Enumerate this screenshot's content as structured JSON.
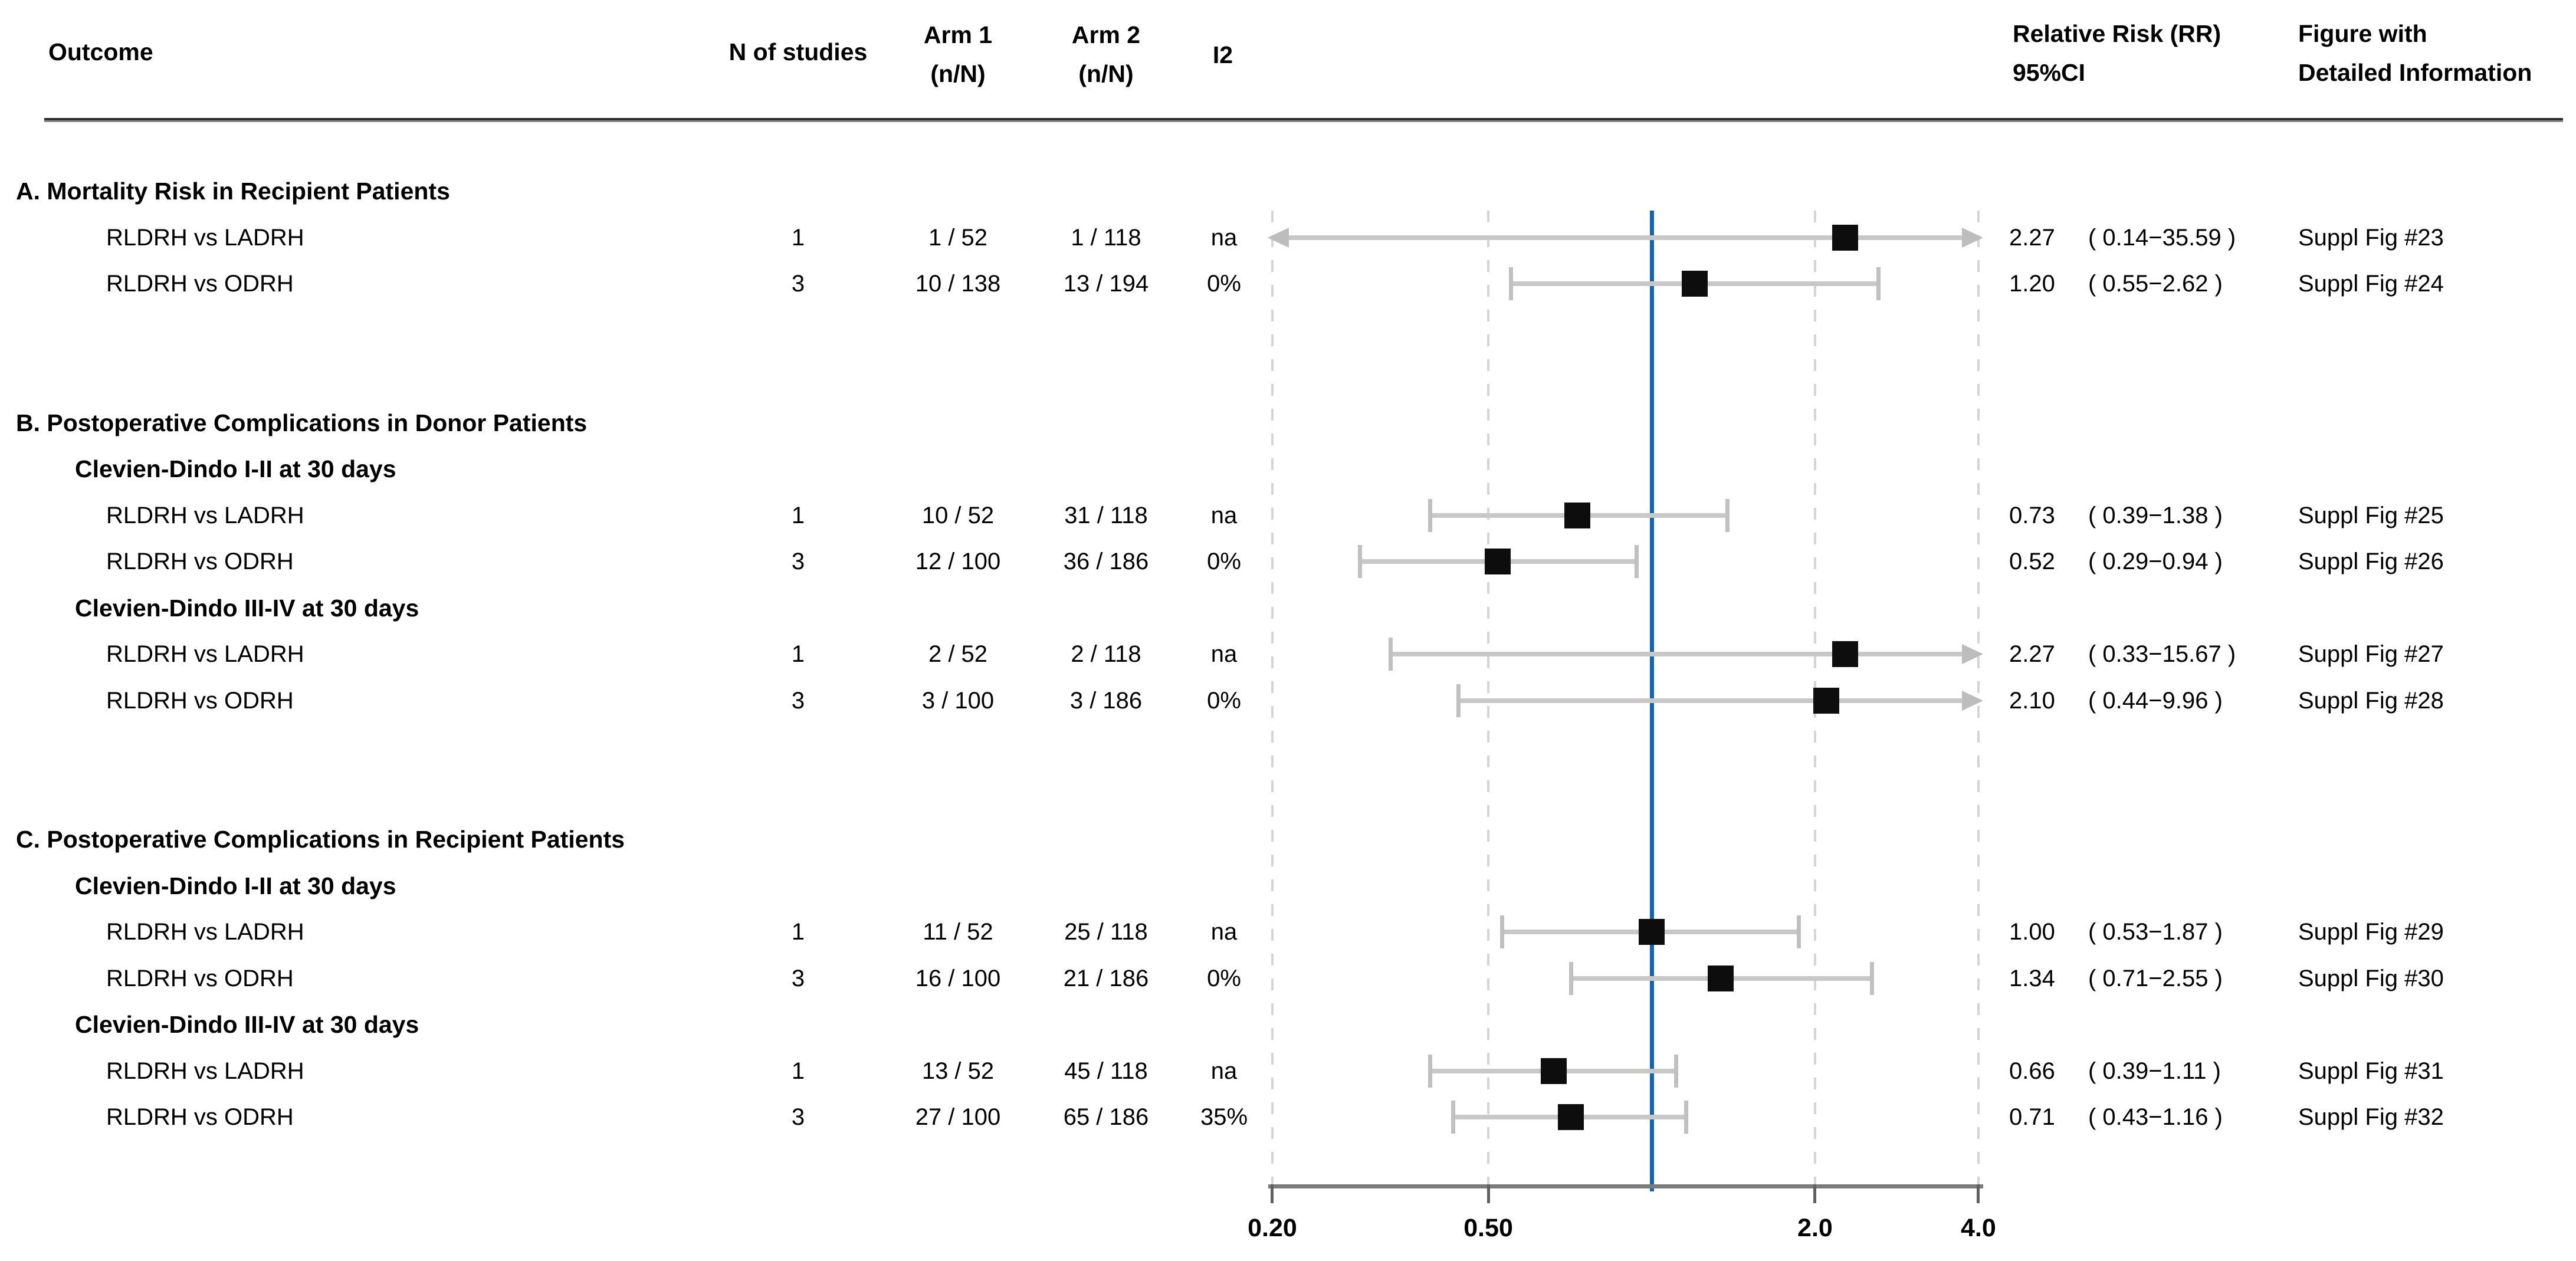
{
  "header": {
    "outcome": "Outcome",
    "n_studies": "N of studies",
    "arm1_line1": "Arm 1",
    "arm1_line2": "(n/N)",
    "arm2_line1": "Arm 2",
    "arm2_line2": "(n/N)",
    "i2": "I2",
    "rr_line1": "Relative Risk (RR)",
    "rr_line2": "95%CI",
    "fig_line1": "Figure with",
    "fig_line2": "Detailed Information"
  },
  "colors": {
    "ref_line": "#1565a8",
    "ci": "#c8c8c8",
    "marker": "#0d0d0d",
    "grid": "#d4d4d4",
    "axis": "#7b7b7b"
  },
  "chart_data": {
    "type": "forest",
    "scale": "log",
    "axis": {
      "range": [
        0.2,
        4.0
      ],
      "reference_value": 1.0,
      "ticks": [
        {
          "value": 0.2,
          "label": "0.20"
        },
        {
          "value": 0.5,
          "label": "0.50"
        },
        {
          "value": 2.0,
          "label": "2.0"
        },
        {
          "value": 4.0,
          "label": "4.0"
        }
      ]
    },
    "rows": [
      {
        "kind": "section",
        "slot": 0,
        "label": "A. Mortality Risk in Recipient Patients"
      },
      {
        "kind": "study",
        "slot": 1,
        "label": "RLDRH vs LADRH",
        "n_studies": "1",
        "arm1": "1 / 52",
        "arm2": "1 / 118",
        "i2": "na",
        "rr": 2.27,
        "ci_low": 0.14,
        "ci_high": 35.59,
        "rr_text": "2.27",
        "ci_text": "( 0.14−35.59 )",
        "figure": "Suppl Fig #23"
      },
      {
        "kind": "study",
        "slot": 2,
        "label": "RLDRH vs ODRH",
        "n_studies": "3",
        "arm1": "10 / 138",
        "arm2": "13 / 194",
        "i2": "0%",
        "rr": 1.2,
        "ci_low": 0.55,
        "ci_high": 2.62,
        "rr_text": "1.20",
        "ci_text": "( 0.55−2.62 )",
        "figure": "Suppl Fig #24"
      },
      {
        "kind": "section",
        "slot": 5,
        "label": "B. Postoperative Complications in Donor Patients"
      },
      {
        "kind": "subsection",
        "slot": 6,
        "label": "Clevien-Dindo I-II at 30 days"
      },
      {
        "kind": "study",
        "slot": 7,
        "label": "RLDRH vs LADRH",
        "n_studies": "1",
        "arm1": "10 / 52",
        "arm2": "31 / 118",
        "i2": "na",
        "rr": 0.73,
        "ci_low": 0.39,
        "ci_high": 1.38,
        "rr_text": "0.73",
        "ci_text": "( 0.39−1.38 )",
        "figure": "Suppl Fig #25"
      },
      {
        "kind": "study",
        "slot": 8,
        "label": "RLDRH vs ODRH",
        "n_studies": "3",
        "arm1": "12 / 100",
        "arm2": "36 / 186",
        "i2": "0%",
        "rr": 0.52,
        "ci_low": 0.29,
        "ci_high": 0.94,
        "rr_text": "0.52",
        "ci_text": "( 0.29−0.94 )",
        "figure": "Suppl Fig #26"
      },
      {
        "kind": "subsection",
        "slot": 9,
        "label": "Clevien-Dindo III-IV at 30 days"
      },
      {
        "kind": "study",
        "slot": 10,
        "label": "RLDRH vs LADRH",
        "n_studies": "1",
        "arm1": "2 / 52",
        "arm2": "2 / 118",
        "i2": "na",
        "rr": 2.27,
        "ci_low": 0.33,
        "ci_high": 15.67,
        "rr_text": "2.27",
        "ci_text": "( 0.33−15.67 )",
        "figure": "Suppl Fig #27"
      },
      {
        "kind": "study",
        "slot": 11,
        "label": "RLDRH vs ODRH",
        "n_studies": "3",
        "arm1": "3 / 100",
        "arm2": "3 / 186",
        "i2": "0%",
        "rr": 2.1,
        "ci_low": 0.44,
        "ci_high": 9.96,
        "rr_text": "2.10",
        "ci_text": "( 0.44−9.96 )",
        "figure": "Suppl Fig #28"
      },
      {
        "kind": "section",
        "slot": 14,
        "label": "C. Postoperative Complications in Recipient Patients"
      },
      {
        "kind": "subsection",
        "slot": 15,
        "label": "Clevien-Dindo I-II at 30 days"
      },
      {
        "kind": "study",
        "slot": 16,
        "label": "RLDRH vs LADRH",
        "n_studies": "1",
        "arm1": "11 / 52",
        "arm2": "25 / 118",
        "i2": "na",
        "rr": 1.0,
        "ci_low": 0.53,
        "ci_high": 1.87,
        "rr_text": "1.00",
        "ci_text": "( 0.53−1.87 )",
        "figure": "Suppl Fig #29"
      },
      {
        "kind": "study",
        "slot": 17,
        "label": "RLDRH vs ODRH",
        "n_studies": "3",
        "arm1": "16 / 100",
        "arm2": "21 / 186",
        "i2": "0%",
        "rr": 1.34,
        "ci_low": 0.71,
        "ci_high": 2.55,
        "rr_text": "1.34",
        "ci_text": "( 0.71−2.55 )",
        "figure": "Suppl Fig #30"
      },
      {
        "kind": "subsection",
        "slot": 18,
        "label": "Clevien-Dindo III-IV at 30 days"
      },
      {
        "kind": "study",
        "slot": 19,
        "label": "RLDRH vs LADRH",
        "n_studies": "1",
        "arm1": "13 / 52",
        "arm2": "45 / 118",
        "i2": "na",
        "rr": 0.66,
        "ci_low": 0.39,
        "ci_high": 1.11,
        "rr_text": "0.66",
        "ci_text": "( 0.39−1.11 )",
        "figure": "Suppl Fig #31"
      },
      {
        "kind": "study",
        "slot": 20,
        "label": "RLDRH vs ODRH",
        "n_studies": "3",
        "arm1": "27 / 100",
        "arm2": "65 / 186",
        "i2": "35%",
        "rr": 0.71,
        "ci_low": 0.43,
        "ci_high": 1.16,
        "rr_text": "0.71",
        "ci_text": "( 0.43−1.16 )",
        "figure": "Suppl Fig #32"
      }
    ]
  }
}
